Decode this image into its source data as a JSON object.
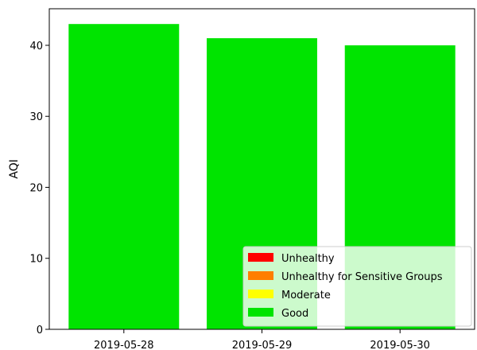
{
  "chart_data": {
    "type": "bar",
    "title": "",
    "xlabel": "",
    "ylabel": "AQI",
    "categories": [
      "2019-05-28",
      "2019-05-29",
      "2019-05-30"
    ],
    "values": [
      43,
      41,
      40
    ],
    "bar_color": "#00e400",
    "ylim": [
      0,
      45.15
    ],
    "yticks": [
      0,
      10,
      20,
      30,
      40
    ],
    "grid": false,
    "legend": {
      "placement": "lower-right",
      "entries": [
        {
          "label": "Unhealthy",
          "color": "#ff0000"
        },
        {
          "label": "Unhealthy for Sensitive Groups",
          "color": "#ff7e00"
        },
        {
          "label": "Moderate",
          "color": "#ffff00"
        },
        {
          "label": "Good",
          "color": "#00e400"
        }
      ]
    }
  }
}
